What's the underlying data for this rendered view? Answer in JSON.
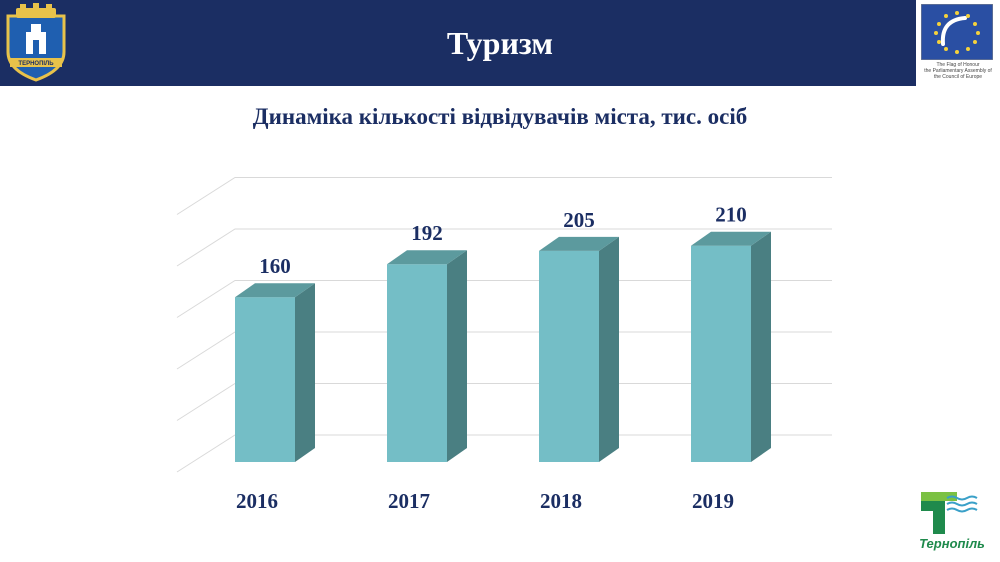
{
  "header": {
    "title": "Туризм"
  },
  "eu_badge": {
    "caption_lines": [
      "The Flag of Honour",
      "the Parliamentary Assembly of",
      "the Council of Europe"
    ]
  },
  "city_logo": {
    "name": "Тернопіль"
  },
  "crest": {
    "label": "ТЕРНОПІЛЬ"
  },
  "colors": {
    "header_bg": "#1b2e63",
    "bar_front": "#74bec6",
    "bar_side": "#4a7f82",
    "bar_top": "#5c9a9e",
    "label_text": "#1b2e63",
    "gridline": "#d9d9d9"
  },
  "chart_data": {
    "type": "bar",
    "title": "Динаміка кількості відвідувачів міста, тис. осіб",
    "categories": [
      "2016",
      "2017",
      "2018",
      "2019"
    ],
    "values": [
      160,
      192,
      205,
      210
    ],
    "data_labels": [
      "160",
      "192",
      "205",
      "210"
    ],
    "ylim": [
      0,
      250
    ],
    "grid": true,
    "xlabel": "",
    "ylabel": ""
  }
}
